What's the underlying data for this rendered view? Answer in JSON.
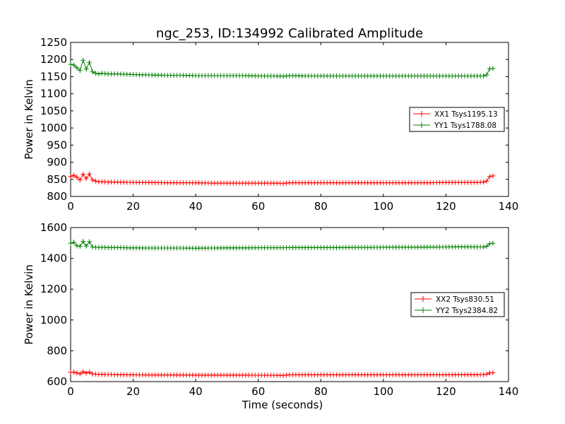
{
  "figure": {
    "title": "ngc_253, ID:134992 Calibrated Amplitude"
  },
  "chart_data": [
    {
      "type": "line",
      "title": "ngc_253, ID:134992 Calibrated Amplitude",
      "xlabel": "",
      "ylabel": "Power in Kelvin",
      "xlim": [
        0,
        140
      ],
      "ylim": [
        800,
        1250
      ],
      "xticks": [
        "0",
        "20",
        "40",
        "60",
        "80",
        "100",
        "120",
        "140"
      ],
      "yticks": [
        "800",
        "850",
        "900",
        "950",
        "1000",
        "1050",
        "1100",
        "1150",
        "1200",
        "1250"
      ],
      "xtick_values": [
        0,
        20,
        40,
        60,
        80,
        100,
        120,
        140
      ],
      "ytick_values": [
        800,
        850,
        900,
        950,
        1000,
        1050,
        1100,
        1150,
        1200,
        1250
      ],
      "grid": false,
      "legend_position": "center-right",
      "marker": "+",
      "series": [
        {
          "name": "XX1 Tsys1195.13",
          "color": "#ff0000",
          "x": [
            0,
            1,
            2,
            3,
            4,
            5,
            6,
            7,
            8,
            9,
            10,
            12,
            15,
            20,
            25,
            30,
            35,
            40,
            45,
            50,
            55,
            60,
            65,
            68,
            70,
            75,
            80,
            85,
            90,
            95,
            100,
            105,
            110,
            115,
            120,
            125,
            130,
            132,
            133,
            134,
            135
          ],
          "y": [
            858,
            862,
            856,
            848,
            865,
            852,
            866,
            848,
            845,
            843,
            843,
            842,
            842,
            841,
            841,
            840,
            840,
            840,
            839,
            839,
            839,
            839,
            839,
            838,
            840,
            840,
            840,
            840,
            840,
            840,
            840,
            840,
            840,
            840,
            841,
            841,
            841,
            842,
            845,
            858,
            860
          ]
        },
        {
          "name": "YY1 Tsys1788.08",
          "color": "#008000",
          "x": [
            0,
            1,
            2,
            3,
            4,
            5,
            6,
            7,
            8,
            9,
            10,
            12,
            15,
            20,
            25,
            30,
            35,
            40,
            45,
            50,
            55,
            60,
            65,
            68,
            70,
            75,
            80,
            85,
            90,
            95,
            100,
            105,
            110,
            115,
            120,
            125,
            130,
            132,
            133,
            134,
            135
          ],
          "y": [
            1186,
            1184,
            1176,
            1168,
            1198,
            1172,
            1192,
            1164,
            1160,
            1158,
            1160,
            1158,
            1158,
            1156,
            1155,
            1154,
            1154,
            1153,
            1153,
            1153,
            1153,
            1152,
            1152,
            1151,
            1153,
            1152,
            1152,
            1152,
            1152,
            1152,
            1152,
            1152,
            1152,
            1152,
            1152,
            1152,
            1152,
            1152,
            1155,
            1173,
            1174
          ]
        }
      ]
    },
    {
      "type": "line",
      "title": "",
      "xlabel": "Time (seconds)",
      "ylabel": "Power in Kelvin",
      "xlim": [
        0,
        140
      ],
      "ylim": [
        600,
        1600
      ],
      "xticks": [
        "0",
        "20",
        "40",
        "60",
        "80",
        "100",
        "120",
        "140"
      ],
      "yticks": [
        "600",
        "800",
        "1000",
        "1200",
        "1400",
        "1600"
      ],
      "xtick_values": [
        0,
        20,
        40,
        60,
        80,
        100,
        120,
        140
      ],
      "ytick_values": [
        600,
        800,
        1000,
        1200,
        1400,
        1600
      ],
      "grid": false,
      "legend_position": "center-right",
      "marker": "+",
      "series": [
        {
          "name": "XX2 Tsys830.51",
          "color": "#ff0000",
          "x": [
            0,
            1,
            2,
            3,
            4,
            5,
            6,
            7,
            8,
            9,
            10,
            12,
            15,
            20,
            25,
            30,
            35,
            40,
            45,
            50,
            55,
            60,
            65,
            68,
            70,
            75,
            80,
            85,
            90,
            95,
            100,
            105,
            110,
            115,
            120,
            125,
            130,
            132,
            133,
            134,
            135
          ],
          "y": [
            660,
            662,
            656,
            650,
            664,
            655,
            662,
            650,
            648,
            647,
            647,
            646,
            645,
            644,
            643,
            643,
            643,
            642,
            642,
            642,
            642,
            641,
            641,
            640,
            644,
            644,
            644,
            644,
            644,
            644,
            644,
            644,
            644,
            644,
            644,
            645,
            645,
            646,
            648,
            656,
            658
          ]
        },
        {
          "name": "YY2 Tsys2384.82",
          "color": "#008000",
          "x": [
            0,
            1,
            2,
            3,
            4,
            5,
            6,
            7,
            8,
            9,
            10,
            12,
            15,
            20,
            25,
            30,
            35,
            40,
            45,
            50,
            55,
            60,
            65,
            68,
            70,
            75,
            80,
            85,
            90,
            95,
            100,
            105,
            110,
            115,
            120,
            125,
            130,
            132,
            133,
            134,
            135
          ],
          "y": [
            1498,
            1505,
            1482,
            1478,
            1510,
            1480,
            1508,
            1474,
            1472,
            1471,
            1472,
            1470,
            1470,
            1468,
            1467,
            1467,
            1467,
            1466,
            1467,
            1468,
            1468,
            1469,
            1469,
            1469,
            1470,
            1470,
            1470,
            1470,
            1471,
            1471,
            1472,
            1472,
            1472,
            1473,
            1474,
            1475,
            1474,
            1474,
            1478,
            1495,
            1498
          ]
        }
      ]
    }
  ]
}
